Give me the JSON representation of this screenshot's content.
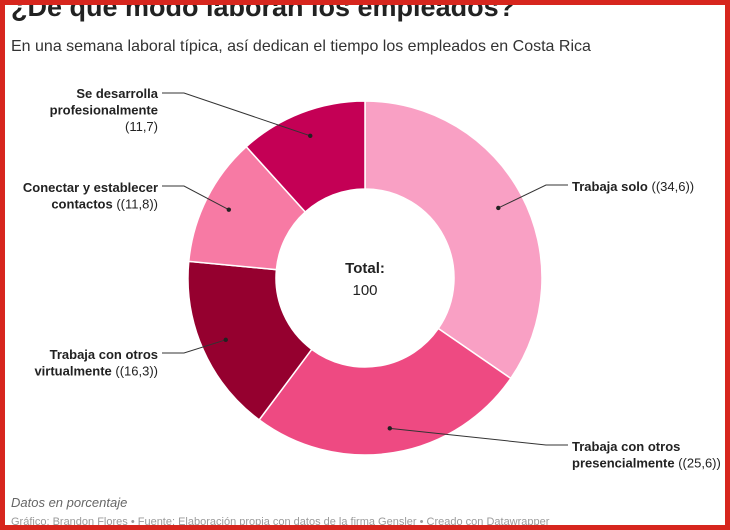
{
  "title": "¿De que modo laboran los empleados?",
  "subtitle": "En una semana laboral típica, así dedican el tiempo los empleados en Costa Rica",
  "note": "Datos en porcentaje",
  "credits": "Gráfico: Brandon Flores • Fuente: Elaboración propia con datos de la firma Gensler • Creado con Datawrapper",
  "chart_data": {
    "type": "pie",
    "donut": true,
    "center_label": "Total:",
    "center_value": "100",
    "slices": [
      {
        "label": "Trabaja solo",
        "value": 34.6,
        "value_text": "(34,6)",
        "color": "#f9a0c4"
      },
      {
        "label": "Trabaja con otros presencialmente",
        "value": 25.6,
        "value_text": "(25,6)",
        "color": "#ee4a82"
      },
      {
        "label": "Trabaja con otros virtualmente",
        "value": 16.3,
        "value_text": "(16,3)",
        "color": "#95002f"
      },
      {
        "label": "Conectar y establecer contactos",
        "value": 11.8,
        "value_text": "(11,8)",
        "color": "#f77aa4"
      },
      {
        "label": "Se desarrolla profesionalmente",
        "value": 11.7,
        "value_text": "(11,7)",
        "color": "#c40055"
      }
    ]
  }
}
